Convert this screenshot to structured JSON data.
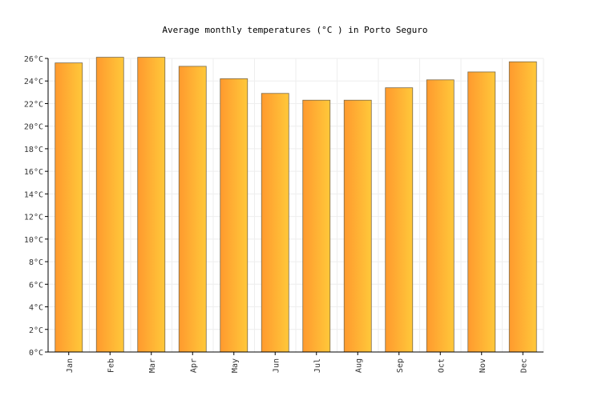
{
  "chart_data": {
    "type": "bar",
    "title": "Average monthly temperatures (°C ) in Porto Seguro",
    "xlabel": "",
    "ylabel": "",
    "categories": [
      "Jan",
      "Feb",
      "Mar",
      "Apr",
      "May",
      "Jun",
      "Jul",
      "Aug",
      "Sep",
      "Oct",
      "Nov",
      "Dec"
    ],
    "values": [
      25.6,
      26.1,
      26.1,
      25.3,
      24.2,
      22.9,
      22.3,
      22.3,
      23.4,
      24.1,
      24.8,
      25.7
    ],
    "ylim": [
      0,
      26
    ],
    "yticks": [
      0,
      2,
      4,
      6,
      8,
      10,
      12,
      14,
      16,
      18,
      20,
      22,
      24,
      26
    ],
    "ytick_suffix": "°C",
    "grid": true,
    "legend": "none",
    "colors": {
      "bar_left": "#ff9a2e",
      "bar_right": "#ffc83a",
      "bar_stroke": "#7a6a4a",
      "grid": "#eeeeee",
      "axis": "#000000"
    }
  }
}
